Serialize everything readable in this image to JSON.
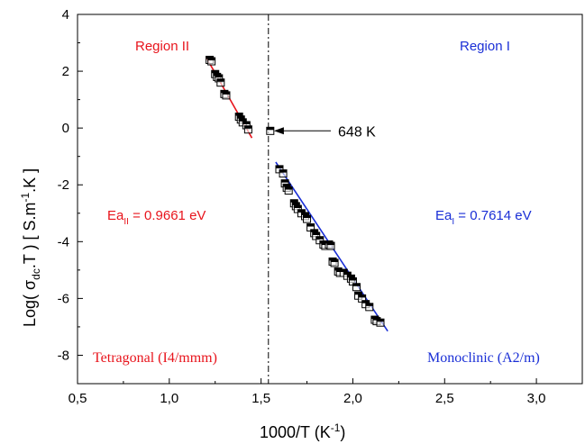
{
  "chart_data": {
    "type": "scatter",
    "xlabel_main": "1000/T (K",
    "xlabel_sup": "-1",
    "xlabel_tail": ")",
    "ylabel_parts": {
      "p1": "Log( σ",
      "sub1": "dc",
      "p2": ".T ) [ S.m",
      "sup1": "-1",
      "p3": ".K ]"
    },
    "xlim": [
      0.5,
      3.25
    ],
    "ylim": [
      -9,
      4
    ],
    "x_ticks": [
      {
        "value": 0.5,
        "label": "0,5"
      },
      {
        "value": 1.0,
        "label": "1,0"
      },
      {
        "value": 1.5,
        "label": "1,5"
      },
      {
        "value": 2.0,
        "label": "2,0"
      },
      {
        "value": 2.5,
        "label": "2,5"
      },
      {
        "value": 3.0,
        "label": "3,0"
      }
    ],
    "y_ticks": [
      {
        "value": 4,
        "label": "4"
      },
      {
        "value": 2,
        "label": "2"
      },
      {
        "value": 0,
        "label": "0"
      },
      {
        "value": -2,
        "label": "-2"
      },
      {
        "value": -4,
        "label": "-4"
      },
      {
        "value": -6,
        "label": "-6"
      },
      {
        "value": -8,
        "label": "-8"
      }
    ],
    "divider_x": 1.54,
    "series": [
      {
        "region": "II",
        "color": "#000000",
        "fit_color": "#e8141c",
        "fit": {
          "x": [
            1.2,
            1.45
          ],
          "y": [
            2.5,
            -0.35
          ]
        },
        "points": [
          {
            "x": 1.22,
            "y": 2.4
          },
          {
            "x": 1.23,
            "y": 2.35
          },
          {
            "x": 1.25,
            "y": 1.9
          },
          {
            "x": 1.26,
            "y": 1.8
          },
          {
            "x": 1.27,
            "y": 1.75
          },
          {
            "x": 1.28,
            "y": 1.6
          },
          {
            "x": 1.3,
            "y": 1.2
          },
          {
            "x": 1.31,
            "y": 1.15
          },
          {
            "x": 1.38,
            "y": 0.4
          },
          {
            "x": 1.39,
            "y": 0.3
          },
          {
            "x": 1.4,
            "y": 0.2
          },
          {
            "x": 1.42,
            "y": 0.1
          },
          {
            "x": 1.43,
            "y": -0.05
          }
        ]
      },
      {
        "region": "I",
        "color": "#000000",
        "fit_color": "#1a2fd6",
        "fit": {
          "x": [
            1.58,
            2.19
          ],
          "y": [
            -1.2,
            -7.15
          ]
        },
        "points": [
          {
            "x": 1.6,
            "y": -1.45
          },
          {
            "x": 1.62,
            "y": -1.6
          },
          {
            "x": 1.63,
            "y": -1.95
          },
          {
            "x": 1.64,
            "y": -2.1
          },
          {
            "x": 1.65,
            "y": -2.2
          },
          {
            "x": 1.68,
            "y": -2.65
          },
          {
            "x": 1.69,
            "y": -2.75
          },
          {
            "x": 1.7,
            "y": -2.85
          },
          {
            "x": 1.72,
            "y": -3.0
          },
          {
            "x": 1.74,
            "y": -3.1
          },
          {
            "x": 1.75,
            "y": -3.2
          },
          {
            "x": 1.77,
            "y": -3.5
          },
          {
            "x": 1.79,
            "y": -3.7
          },
          {
            "x": 1.8,
            "y": -3.8
          },
          {
            "x": 1.82,
            "y": -3.95
          },
          {
            "x": 1.84,
            "y": -4.1
          },
          {
            "x": 1.85,
            "y": -4.15
          },
          {
            "x": 1.87,
            "y": -4.1
          },
          {
            "x": 1.88,
            "y": -4.15
          },
          {
            "x": 1.89,
            "y": -4.7
          },
          {
            "x": 1.9,
            "y": -4.75
          },
          {
            "x": 1.92,
            "y": -5.05
          },
          {
            "x": 1.93,
            "y": -5.1
          },
          {
            "x": 1.95,
            "y": -5.1
          },
          {
            "x": 1.97,
            "y": -5.2
          },
          {
            "x": 1.99,
            "y": -5.3
          },
          {
            "x": 2.0,
            "y": -5.4
          },
          {
            "x": 2.02,
            "y": -5.6
          },
          {
            "x": 2.03,
            "y": -5.9
          },
          {
            "x": 2.05,
            "y": -6.0
          },
          {
            "x": 2.07,
            "y": -6.2
          },
          {
            "x": 2.09,
            "y": -6.3
          },
          {
            "x": 2.12,
            "y": -6.75
          },
          {
            "x": 2.13,
            "y": -6.8
          },
          {
            "x": 2.15,
            "y": -6.85
          }
        ]
      }
    ],
    "outlier_point": {
      "x": 1.55,
      "y": -0.1
    },
    "arrow": {
      "label": "648 K",
      "from": {
        "x": 1.88,
        "y": -0.1
      },
      "to": {
        "x": 1.57,
        "y": -0.1
      }
    },
    "annotations": {
      "region_ii": {
        "text": "Region II",
        "color": "#e8141c"
      },
      "region_i": {
        "text": "Region I",
        "color": "#1a2fd6"
      },
      "ea_ii": {
        "main": "Ea",
        "sub": "II",
        "tail": " = 0.9661 eV",
        "color": "#e8141c"
      },
      "ea_i": {
        "main": "Ea",
        "sub": "I",
        "tail": " = 0.7614 eV",
        "color": "#1a2fd6"
      },
      "tetragonal": {
        "text": "Tetragonal (I4/mmm)",
        "color": "#e8141c"
      },
      "monoclinic": {
        "text": "Monoclinic (A2/m)",
        "color": "#1a2fd6"
      }
    }
  }
}
